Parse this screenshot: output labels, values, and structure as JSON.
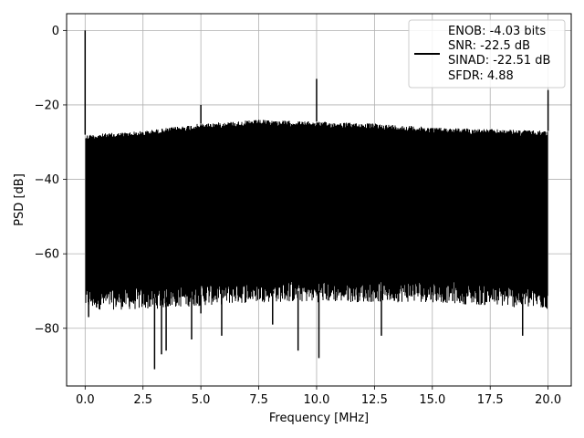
{
  "chart_data": {
    "type": "line",
    "title": "",
    "xlabel": "Frequency [MHz]",
    "ylabel": "PSD [dB]",
    "xlim": [
      -0.8,
      21.0
    ],
    "ylim": [
      -95.5,
      4.5
    ],
    "x_ticks": [
      0.0,
      2.5,
      5.0,
      7.5,
      10.0,
      12.5,
      15.0,
      17.5,
      20.0
    ],
    "x_tick_labels": [
      "0.0",
      "2.5",
      "5.0",
      "7.5",
      "10.0",
      "12.5",
      "15.0",
      "17.5",
      "20.0"
    ],
    "y_ticks": [
      0,
      -20,
      -40,
      -60,
      -80
    ],
    "y_tick_labels": [
      "0",
      "−20",
      "−40",
      "−60",
      "−80"
    ],
    "grid": true,
    "legend_position": "top-right",
    "legend_lines": [
      "ENOB: -4.03 bits",
      "SNR: -22.5 dB",
      "SINAD: -22.51 dB",
      "SFDR: 4.88"
    ],
    "line_color": "#000000",
    "series": [
      {
        "noise_band": {
          "x": [
            0.0,
            2.5,
            5.0,
            7.5,
            10.0,
            12.5,
            15.0,
            17.5,
            20.0
          ],
          "upper": [
            -28,
            -27,
            -25,
            -24,
            -24.5,
            -25,
            -26,
            -26.5,
            -27
          ],
          "lower": [
            -72,
            -72,
            -71,
            -70,
            -70,
            -70,
            -70,
            -71,
            -72
          ]
        },
        "peaks": [
          {
            "x": 0.0,
            "y": 0
          },
          {
            "x": 5.0,
            "y": -20
          },
          {
            "x": 10.0,
            "y": -13
          },
          {
            "x": 20.0,
            "y": -16
          }
        ],
        "dips": [
          {
            "x": 0.15,
            "y": -77
          },
          {
            "x": 3.0,
            "y": -91
          },
          {
            "x": 3.3,
            "y": -87
          },
          {
            "x": 3.5,
            "y": -86
          },
          {
            "x": 4.6,
            "y": -83
          },
          {
            "x": 5.0,
            "y": -76
          },
          {
            "x": 5.9,
            "y": -82
          },
          {
            "x": 8.1,
            "y": -79
          },
          {
            "x": 9.2,
            "y": -86
          },
          {
            "x": 10.1,
            "y": -88
          },
          {
            "x": 12.8,
            "y": -82
          },
          {
            "x": 18.9,
            "y": -82
          }
        ]
      }
    ]
  }
}
